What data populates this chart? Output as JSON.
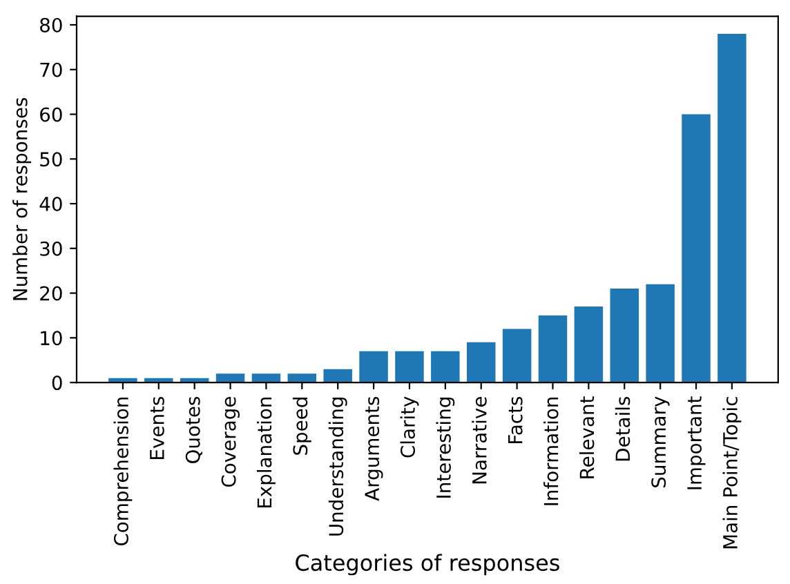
{
  "chart_data": {
    "type": "bar",
    "xlabel": "Categories of responses",
    "ylabel": "Number of responses",
    "categories": [
      "Comprehension",
      "Events",
      "Quotes",
      "Coverage",
      "Explanation",
      "Speed",
      "Understanding",
      "Arguments",
      "Clarity",
      "Interesting",
      "Narrative",
      "Facts",
      "Information",
      "Relevant",
      "Details",
      "Summary",
      "Important",
      "Main Point/Topic"
    ],
    "values": [
      1,
      1,
      1,
      2,
      2,
      2,
      3,
      7,
      7,
      7,
      9,
      12,
      15,
      17,
      21,
      22,
      60,
      78
    ],
    "color": "#1f77b4",
    "ylim": [
      0,
      81.9
    ],
    "yticks": [
      0,
      10,
      20,
      30,
      40,
      50,
      60,
      70,
      80
    ],
    "grid": false,
    "legend": false
  }
}
